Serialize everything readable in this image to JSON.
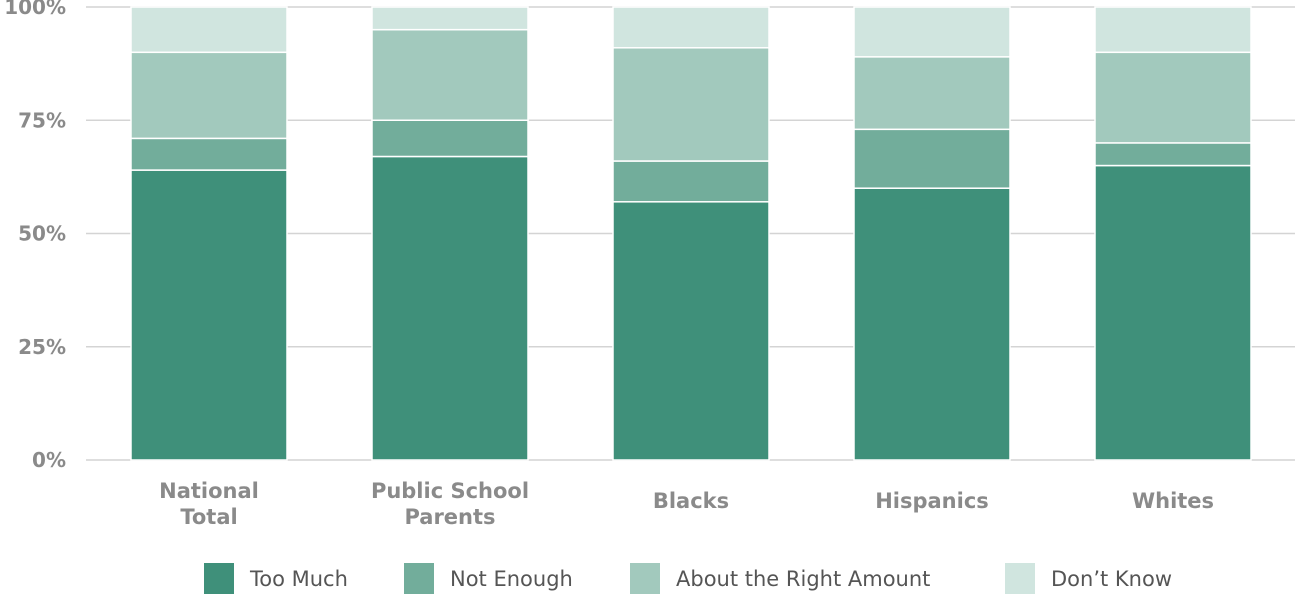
{
  "chart_data": {
    "type": "bar",
    "stacked": true,
    "categories": [
      [
        "National",
        "Total"
      ],
      [
        "Public School",
        "Parents"
      ],
      [
        "Blacks"
      ],
      [
        "Hispanics"
      ],
      [
        "Whites"
      ]
    ],
    "series": [
      {
        "name": "Too Much",
        "color": "#3f907a",
        "values": [
          64,
          67,
          57,
          60,
          65
        ]
      },
      {
        "name": "Not Enough",
        "color": "#72ad9b",
        "values": [
          7,
          8,
          9,
          13,
          5
        ]
      },
      {
        "name": "About the Right Amount",
        "color": "#a2c9bd",
        "values": [
          19,
          20,
          25,
          16,
          20
        ]
      },
      {
        "name": "Don’t Know",
        "color": "#d0e5df",
        "values": [
          10,
          5,
          9,
          11,
          10
        ]
      }
    ],
    "yticks": [
      "0%",
      "25%",
      "50%",
      "75%",
      "100%"
    ],
    "ytick_values": [
      0,
      25,
      50,
      75,
      100
    ],
    "ylim": [
      0,
      100
    ],
    "grid": true,
    "legend_position": "bottom"
  }
}
